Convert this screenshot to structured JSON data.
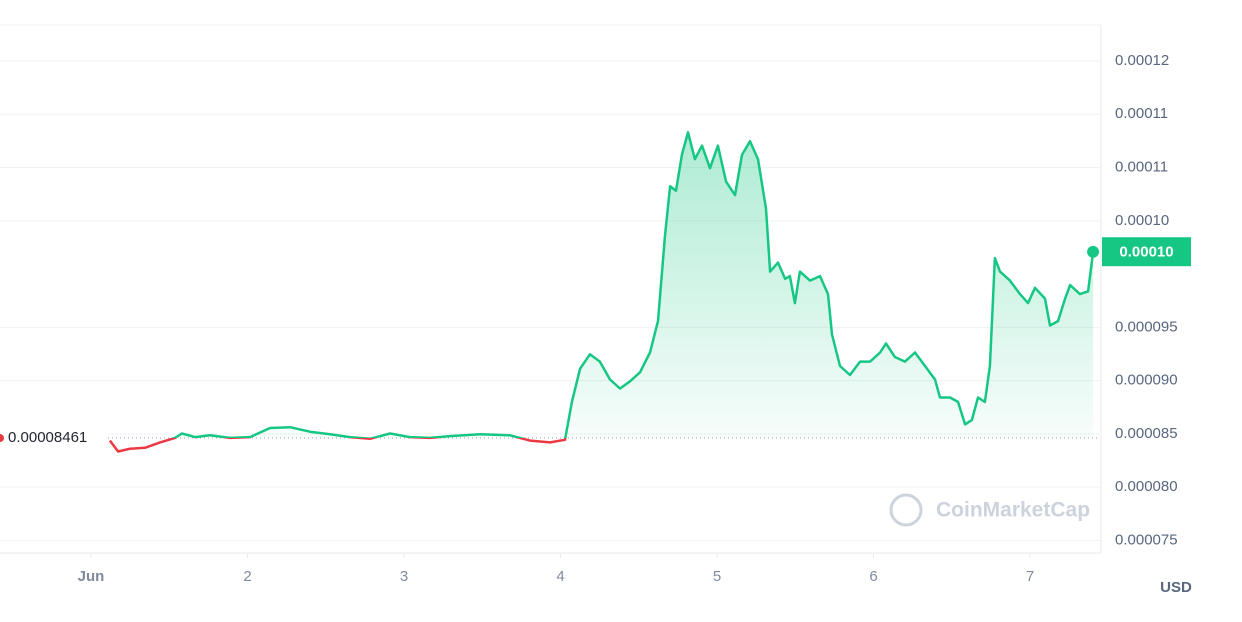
{
  "chart_data": {
    "type": "line",
    "x": [
      1.121,
      1.173,
      1.249,
      1.345,
      1.441,
      1.537,
      1.581,
      1.665,
      1.76,
      1.888,
      2.016,
      2.144,
      2.272,
      2.399,
      2.527,
      2.655,
      2.783,
      2.911,
      3.038,
      3.166,
      3.294,
      3.486,
      3.677,
      3.805,
      3.933,
      4.029,
      4.073,
      4.125,
      4.188,
      4.252,
      4.316,
      4.38,
      4.444,
      4.508,
      4.572,
      4.623,
      4.668,
      4.7,
      4.738,
      4.776,
      4.815,
      4.859,
      4.904,
      4.955,
      5.006,
      5.058,
      5.115,
      5.16,
      5.211,
      5.262,
      5.313,
      5.339,
      5.39,
      5.435,
      5.466,
      5.498,
      5.53,
      5.594,
      5.658,
      5.709,
      5.735,
      5.786,
      5.85,
      5.914,
      5.978,
      6.042,
      6.08,
      6.137,
      6.201,
      6.265,
      6.329,
      6.393,
      6.425,
      6.489,
      6.54,
      6.585,
      6.629,
      6.668,
      6.712,
      6.744,
      6.776,
      6.808,
      6.872,
      6.936,
      6.987,
      7.032,
      7.096,
      7.128,
      7.179,
      7.224,
      7.256,
      7.319,
      7.371,
      7.403
    ],
    "values": [
      8.437e-05,
      8.335e-05,
      8.361e-05,
      8.369e-05,
      8.42e-05,
      8.462e-05,
      8.504e-05,
      8.47e-05,
      8.487e-05,
      8.462e-05,
      8.47e-05,
      8.555e-05,
      8.563e-05,
      8.521e-05,
      8.496e-05,
      8.47e-05,
      8.454e-05,
      8.504e-05,
      8.47e-05,
      8.462e-05,
      8.479e-05,
      8.496e-05,
      8.487e-05,
      8.437e-05,
      8.42e-05,
      8.445e-05,
      8.8e-05,
      9.112e-05,
      9.247e-05,
      9.179e-05,
      9.011e-05,
      8.926e-05,
      8.994e-05,
      9.078e-05,
      9.264e-05,
      9.559e-05,
      0.00010361,
      0.00010825,
      0.00010783,
      0.0001112,
      0.00011331,
      0.00011078,
      0.00011205,
      0.00010994,
      0.00011205,
      0.00010867,
      0.00010741,
      0.0001112,
      0.00011247,
      0.00011078,
      0.00010614,
      0.00010023,
      0.00010108,
      9.956e-05,
      9.981e-05,
      9.728e-05,
      0.00010023,
      9.939e-05,
      9.981e-05,
      9.812e-05,
      9.433e-05,
      9.137e-05,
      9.053e-05,
      9.179e-05,
      9.179e-05,
      9.264e-05,
      9.348e-05,
      9.222e-05,
      9.179e-05,
      9.264e-05,
      9.137e-05,
      9.011e-05,
      8.842e-05,
      8.842e-05,
      8.8e-05,
      8.589e-05,
      8.631e-05,
      8.842e-05,
      8.8e-05,
      9.137e-05,
      0.0001015,
      0.00010023,
      9.939e-05,
      9.812e-05,
      9.728e-05,
      9.871e-05,
      9.77e-05,
      9.517e-05,
      9.559e-05,
      9.77e-05,
      9.897e-05,
      9.812e-05,
      9.838e-05,
      0.00010209
    ],
    "up_color": "#16c784",
    "down_color": "#ea3943",
    "reference_price": 8.461e-05,
    "current_price": 0.0001021,
    "current_price_label": "0.00010",
    "xlim": [
      0.4185,
      7.4473
    ],
    "xticks": [
      {
        "value": 1,
        "label": "Jun"
      },
      2,
      3,
      4,
      5,
      6,
      7
    ],
    "ylim": [
      7.382e-05,
      0.00012338
    ],
    "yticks": [
      0.00012,
      {
        "value": 0.000115,
        "label": "0.00011"
      },
      0.00011,
      {
        "value": 0.000105,
        "label": "0.00010"
      },
      9.5e-05,
      {
        "value": 9e-05,
        "label": "0.000090"
      },
      8.5e-05,
      {
        "value": 8e-05,
        "label": "0.000080"
      },
      7.5e-05
    ],
    "y_unit": "USD",
    "watermark": "CoinMarketCap",
    "grid": true
  }
}
